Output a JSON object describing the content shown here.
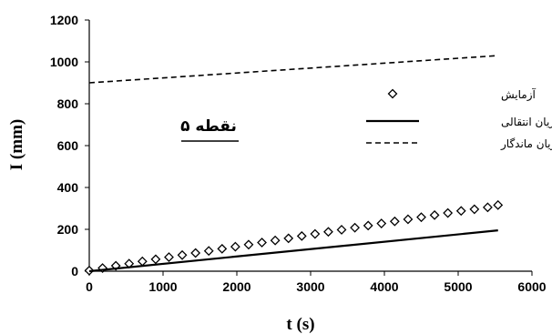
{
  "chart_data": {
    "type": "line",
    "title": "",
    "xlabel": "t (s)",
    "ylabel": "I (mm)",
    "xlim": [
      0,
      6000
    ],
    "ylim": [
      0,
      1200
    ],
    "xticks": [
      0,
      1000,
      2000,
      3000,
      4000,
      5000,
      6000
    ],
    "yticks": [
      0,
      200,
      400,
      600,
      800,
      1000,
      1200
    ],
    "grid": false,
    "legend_position": "right",
    "annotation": "نقطه ۵",
    "series": [
      {
        "name": "آزمایش",
        "style": "markers",
        "marker": "diamond",
        "color": "#000000",
        "x": [
          0,
          180,
          360,
          540,
          720,
          900,
          1080,
          1260,
          1440,
          1620,
          1800,
          1980,
          2160,
          2340,
          2520,
          2700,
          2880,
          3060,
          3240,
          3420,
          3600,
          3780,
          3960,
          4140,
          4320,
          4500,
          4680,
          4860,
          5040,
          5220,
          5400,
          5540
        ],
        "y": [
          3,
          15,
          26,
          36,
          47,
          57,
          67,
          77,
          87,
          97,
          107,
          117,
          127,
          137,
          147,
          157,
          168,
          178,
          188,
          198,
          208,
          218,
          228,
          238,
          248,
          258,
          268,
          278,
          288,
          296,
          305,
          316
        ]
      },
      {
        "name": "جریان انتقالی",
        "style": "solid",
        "color": "#000000",
        "x": [
          0,
          5540
        ],
        "y": [
          0,
          195
        ]
      },
      {
        "name": "جریان ماندگار",
        "style": "dashed",
        "color": "#000000",
        "x": [
          0,
          5540
        ],
        "y": [
          900,
          1030
        ]
      }
    ]
  }
}
